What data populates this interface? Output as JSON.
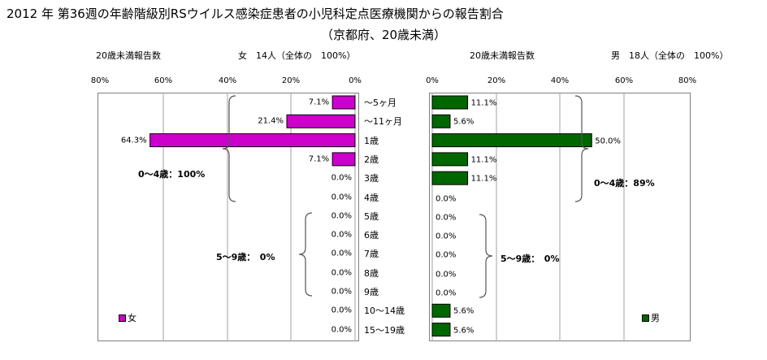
{
  "title": "2012 年 第36週の年齢階級別RSウイルス感染症患者の小児科定点医療機関からの報告割合",
  "subtitle": "（京都府、20歳未満）",
  "chart_data": [
    {
      "type": "bar",
      "orientation": "horizontal",
      "direction": "right-to-left",
      "header_label": "20歳未満報告数",
      "header_total": "女　14人（全体の　100%）",
      "xlim": [
        0,
        80
      ],
      "ticks": [
        "80%",
        "60%",
        "40%",
        "20%",
        "0%"
      ],
      "categories": [
        "～5ヶ月",
        "～11ヶ月",
        "1歳",
        "2歳",
        "3歳",
        "4歳",
        "5歳",
        "6歳",
        "7歳",
        "8歳",
        "9歳",
        "10～14歳",
        "15～19歳"
      ],
      "series": [
        {
          "name": "女",
          "color": "#cc00cc",
          "values": [
            7.1,
            21.4,
            64.3,
            7.1,
            0,
            0,
            0,
            0,
            0,
            0,
            0,
            0,
            0
          ],
          "labels": [
            "7.1%",
            "21.4%",
            "64.3%",
            "7.1%",
            "0.0%",
            "0.0%",
            "0.0%",
            "0.0%",
            "0.0%",
            "0.0%",
            "0.0%",
            "0.0%",
            "0.0%"
          ]
        }
      ],
      "annotations": [
        "0～4歳：100%",
        "5～9歳：　0%"
      ],
      "gridlines": true,
      "legend_position": "bottom-left"
    },
    {
      "type": "bar",
      "orientation": "horizontal",
      "direction": "left-to-right",
      "header_label": "20歳未満報告数",
      "header_total": "男　18人（全体の　100%）",
      "xlim": [
        0,
        80
      ],
      "ticks": [
        "0%",
        "20%",
        "40%",
        "60%",
        "80%"
      ],
      "categories": [
        "～5ヶ月",
        "～11ヶ月",
        "1歳",
        "2歳",
        "3歳",
        "4歳",
        "5歳",
        "6歳",
        "7歳",
        "8歳",
        "9歳",
        "10～14歳",
        "15～19歳"
      ],
      "series": [
        {
          "name": "男",
          "color": "#006600",
          "values": [
            11.1,
            5.6,
            50.0,
            11.1,
            11.1,
            0,
            0,
            0,
            0,
            0,
            0,
            5.6,
            5.6
          ],
          "labels": [
            "11.1%",
            "5.6%",
            "50.0%",
            "11.1%",
            "11.1%",
            "0.0%",
            "0.0%",
            "0.0%",
            "0.0%",
            "0.0%",
            "0.0%",
            "5.6%",
            "5.6%"
          ]
        }
      ],
      "annotations": [
        "0～4歳：89%",
        "5～9歳：　0%"
      ],
      "gridlines": true,
      "legend_position": "bottom-right"
    }
  ]
}
